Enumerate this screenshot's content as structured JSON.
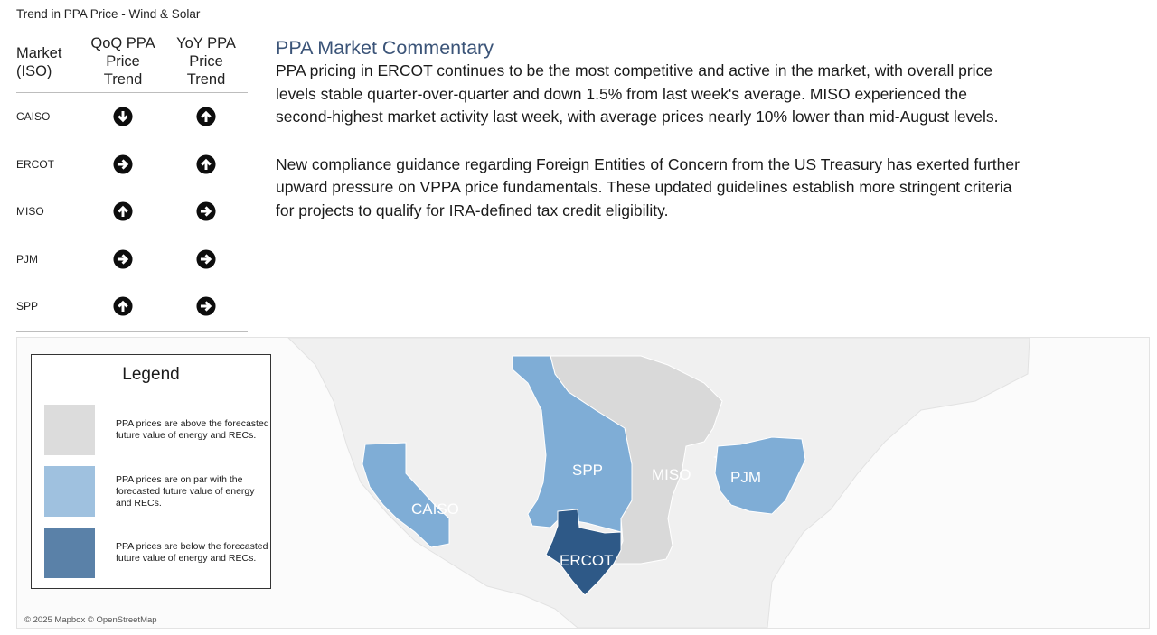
{
  "sheet_title": "Trend in PPA Price - Wind & Solar",
  "trend_table": {
    "headers": {
      "market": [
        "Market",
        "(ISO)"
      ],
      "qoq": [
        "QoQ PPA",
        "Price",
        "Trend"
      ],
      "yoy": [
        "YoY PPA",
        "Price",
        "Trend"
      ]
    },
    "rows": [
      {
        "market": "CAISO",
        "qoq": "down",
        "yoy": "up"
      },
      {
        "market": "ERCOT",
        "qoq": "right",
        "yoy": "up"
      },
      {
        "market": "MISO",
        "qoq": "up",
        "yoy": "right"
      },
      {
        "market": "PJM",
        "qoq": "right",
        "yoy": "right"
      },
      {
        "market": "SPP",
        "qoq": "up",
        "yoy": "right"
      }
    ]
  },
  "commentary": {
    "title": "PPA Market Commentary",
    "paragraphs": [
      "PPA pricing in ERCOT continues to be the most competitive and active in the market, with overall price levels stable quarter-over-quarter and down 1.5% from last week's average. MISO experienced the second-highest market activity last week, with average prices nearly 10% lower than mid-August levels.",
      "New compliance guidance regarding Foreign Entities of Concern from the US Treasury has exerted further upward pressure on VPPA price fundamentals. These updated guidelines establish more stringent criteria for projects to qualify for IRA-defined tax credit eligibility."
    ]
  },
  "legend": {
    "title": "Legend",
    "items": [
      {
        "color": "#dcdcdc",
        "text": "PPA prices are above the forecasted future value of energy and RECs."
      },
      {
        "color": "#9fc1df",
        "text": "PPA prices are on par with the forecasted future value of energy and RECs."
      },
      {
        "color": "#5a81a8",
        "text": "PPA prices are below the forecasted future value of energy and RECs."
      }
    ]
  },
  "map": {
    "regions": [
      {
        "name": "CAISO",
        "status": "on-par"
      },
      {
        "name": "SPP",
        "status": "on-par"
      },
      {
        "name": "MISO",
        "status": "above"
      },
      {
        "name": "PJM",
        "status": "on-par"
      },
      {
        "name": "ERCOT",
        "status": "below"
      }
    ],
    "colors": {
      "above": "#d9d9d9",
      "on-par": "#7fadd6",
      "below": "#2e5987",
      "land": "#f1f1f1",
      "water": "#fbfbfb"
    },
    "attribution": "© 2025 Mapbox © OpenStreetMap"
  }
}
